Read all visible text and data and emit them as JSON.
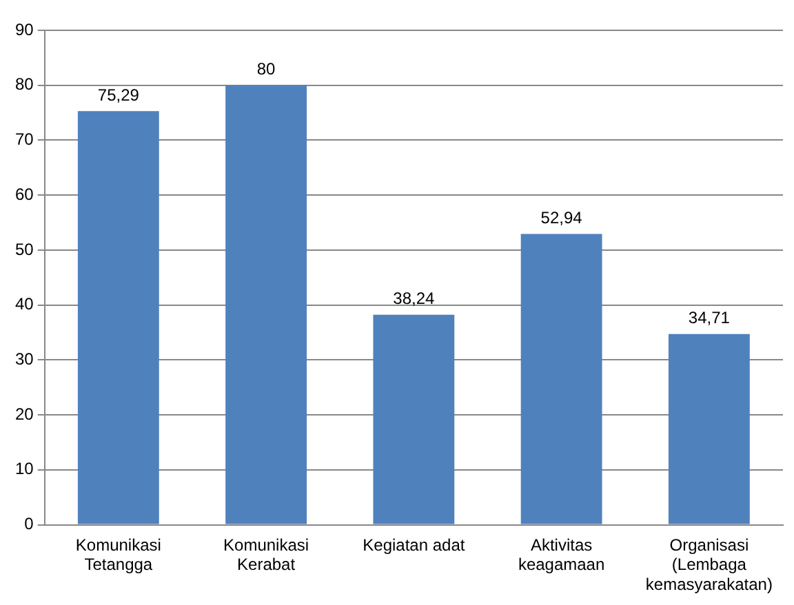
{
  "chart_data": {
    "type": "bar",
    "categories": [
      "Komunikasi\nTetangga",
      "Komunikasi\nKerabat",
      "Kegiatan adat",
      "Aktivitas\nkeagamaan",
      "Organisasi\n(Lembaga\nkemasyarakatan)"
    ],
    "values": [
      75.29,
      80,
      38.24,
      52.94,
      34.71
    ],
    "value_labels": [
      "75,29",
      "80",
      "38,24",
      "52,94",
      "34,71"
    ],
    "color": "#4f81bd",
    "ylim": [
      0,
      90
    ],
    "yticks": [
      0,
      10,
      20,
      30,
      40,
      50,
      60,
      70,
      80,
      90
    ],
    "grid": "y",
    "legend": false
  }
}
